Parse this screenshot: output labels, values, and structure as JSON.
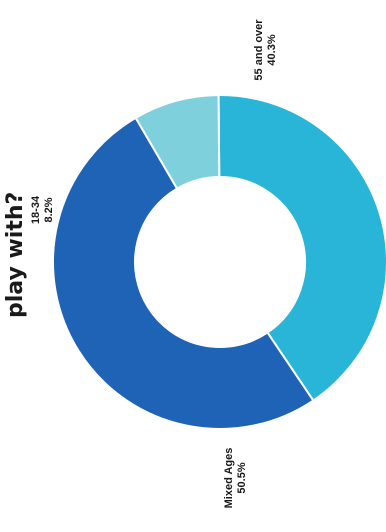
{
  "title": "play with?",
  "colors": {
    "background": "#ffffff",
    "hole": "#ffffff",
    "text": "#1a1a1a"
  },
  "chart_data": {
    "type": "pie",
    "variant": "donut",
    "rotation": "90deg-clockwise",
    "slices": [
      {
        "label": "55 and over",
        "value_text": "40.3%",
        "value": 40.3,
        "color": "#29b5d8"
      },
      {
        "label": "Mixed Ages",
        "value_text": "50.5%",
        "value": 50.5,
        "color": "#1e63b5"
      },
      {
        "label": "18-34",
        "value_text": "8.2%",
        "value": 8.2,
        "color": "#7fd0dd"
      }
    ]
  }
}
